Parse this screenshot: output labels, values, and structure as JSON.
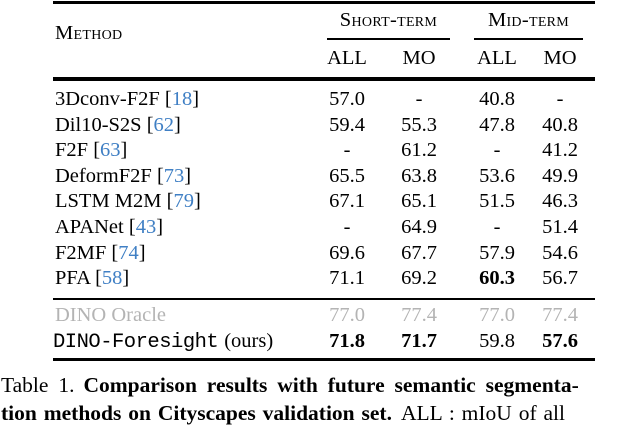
{
  "colors": {
    "citation_blue": "#3f7fc4",
    "oracle_gray": "#b4b4b4"
  },
  "punct": {
    "cite_open": "[",
    "cite_close": "]"
  },
  "table": {
    "header": {
      "method_label": "Method",
      "groups": [
        {
          "label": "Short-term"
        },
        {
          "label": "Mid-term"
        }
      ],
      "subcolumns": [
        "ALL",
        "MO",
        "ALL",
        "MO"
      ]
    },
    "rows": [
      {
        "name": "3Dconv-F2F",
        "cite": "18",
        "values": [
          "57.0",
          "-",
          "40.8",
          "-"
        ]
      },
      {
        "name": "Dil10-S2S",
        "cite": "62",
        "values": [
          "59.4",
          "55.3",
          "47.8",
          "40.8"
        ]
      },
      {
        "name": "F2F",
        "cite": "63",
        "values": [
          "-",
          "61.2",
          "-",
          "41.2"
        ]
      },
      {
        "name": "DeformF2F",
        "cite": "73",
        "values": [
          "65.5",
          "63.8",
          "53.6",
          "49.9"
        ]
      },
      {
        "name": "LSTM M2M",
        "cite": "79",
        "values": [
          "67.1",
          "65.1",
          "51.5",
          "46.3"
        ]
      },
      {
        "name": "APANet",
        "cite": "43",
        "values": [
          "-",
          "64.9",
          "-",
          "51.4"
        ]
      },
      {
        "name": "F2MF",
        "cite": "74",
        "values": [
          "69.6",
          "67.7",
          "57.9",
          "54.6"
        ]
      },
      {
        "name": "PFA",
        "cite": "58",
        "values": [
          "71.1",
          "69.2",
          "60.3",
          "56.7"
        ]
      }
    ],
    "oracle_row": {
      "name": "DINO Oracle",
      "values": [
        "77.0",
        "77.4",
        "77.0",
        "77.4"
      ]
    },
    "ours_row": {
      "name": "DINO-Foresight",
      "suffix": "(ours)",
      "values": [
        "71.8",
        "71.7",
        "59.8",
        "57.6"
      ]
    }
  },
  "caption": {
    "line1_prefix": "Table 1.",
    "line1_bold": "Comparison results with future semantic segmenta-",
    "line2_bold": "tion methods on Cityscapes validation set.",
    "line2_rest": "ALL : mIoU of all"
  }
}
